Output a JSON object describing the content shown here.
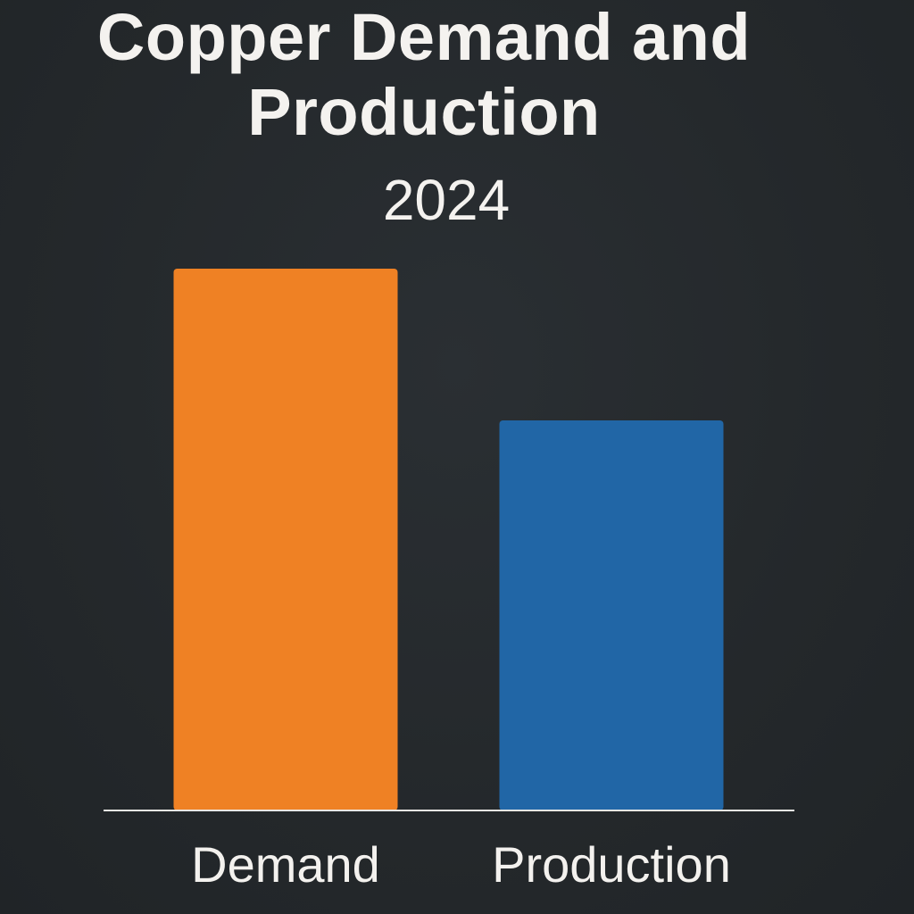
{
  "chart_data": {
    "type": "bar",
    "title": "Copper Demand and Production",
    "subtitle": "2024",
    "categories": [
      "Demand",
      "Production"
    ],
    "values": [
      100,
      72
    ],
    "colors": [
      "#ef8124",
      "#2166a6"
    ],
    "xlabel": "",
    "ylabel": "",
    "ylim": [
      0,
      100
    ],
    "grid": false,
    "legend": "none"
  }
}
